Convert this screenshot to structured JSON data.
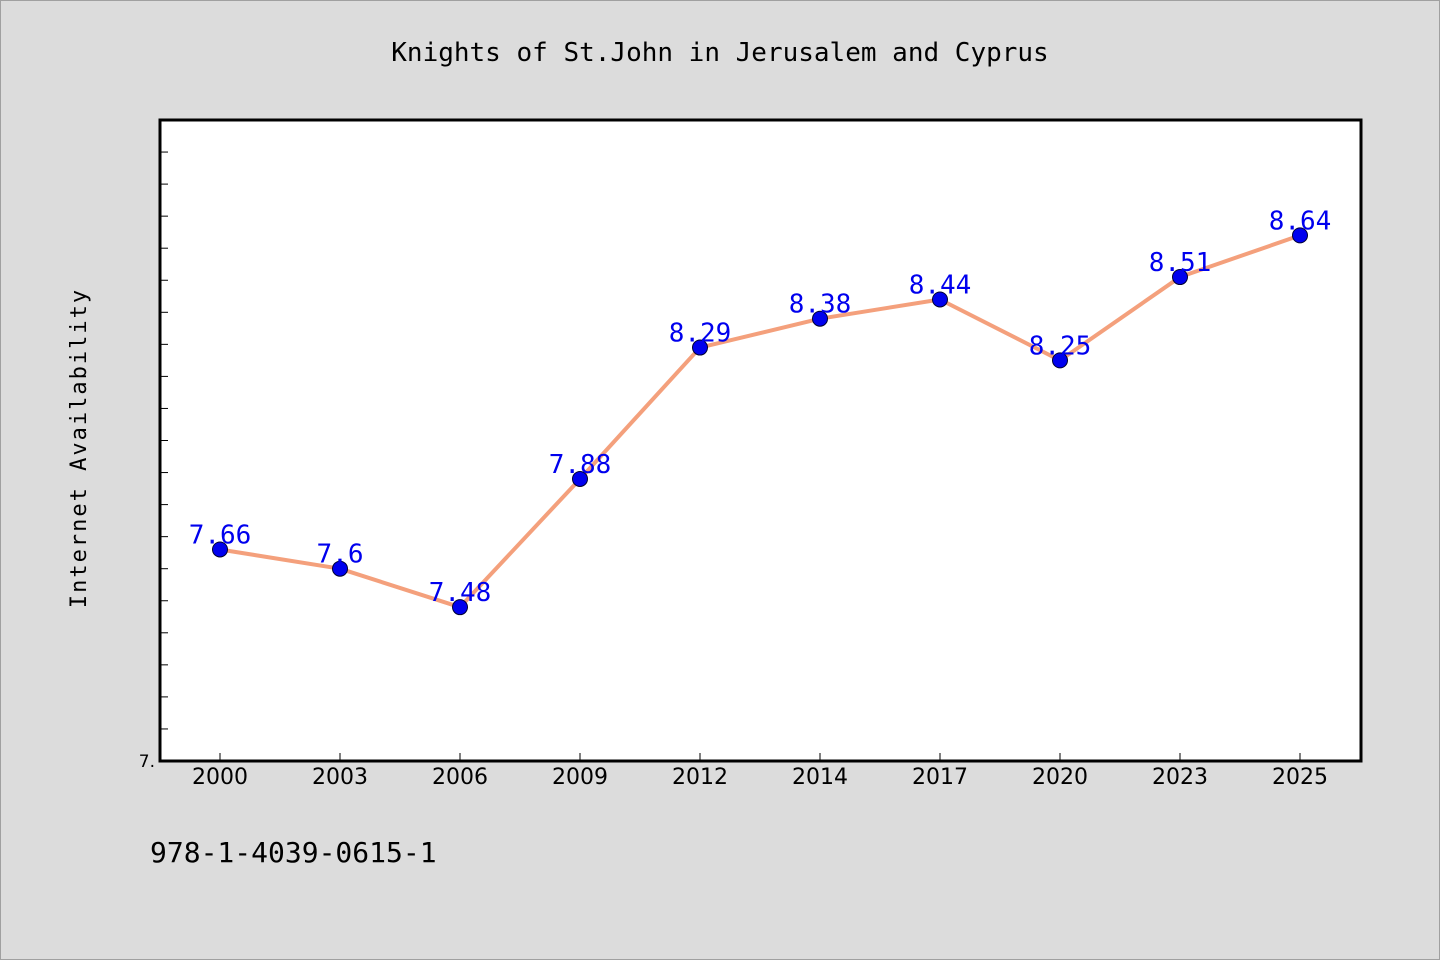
{
  "chart_data": {
    "type": "line",
    "title": "Knights of St.John in Jerusalem and Cyprus",
    "xlabel": "",
    "ylabel": "Internet Availability",
    "categories": [
      "2000",
      "2003",
      "2006",
      "2009",
      "2012",
      "2014",
      "2017",
      "2020",
      "2023",
      "2025"
    ],
    "series": [
      {
        "values": [
          7.66,
          7.6,
          7.48,
          7.88,
          8.29,
          8.38,
          8.44,
          8.25,
          8.51,
          8.64
        ]
      }
    ],
    "data_labels": [
      "7.66",
      "7.6",
      "7.48",
      "7.88",
      "8.29",
      "8.38",
      "8.44",
      "8.25",
      "8.51",
      "8.64"
    ],
    "ylim": [
      7.0,
      9.0
    ],
    "y_tick_labels": [
      "7."
    ],
    "grid": false,
    "legend": "none",
    "colors": {
      "line": "#f4a07c",
      "marker": "#0000ee",
      "data_label": "#0000ee",
      "plot_background": "#ffffff",
      "figure_background": "#dcdcdc"
    }
  },
  "footer": {
    "isbn": "978-1-4039-0615-1"
  }
}
